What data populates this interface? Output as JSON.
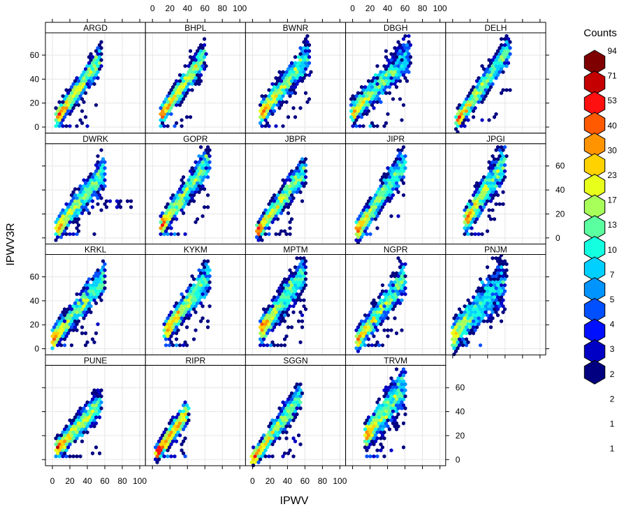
{
  "chart_data": {
    "type": "hexbin",
    "layout": "lattice 5x4 panels",
    "xlabel": "IPWV",
    "ylabel": "IPWV3R",
    "xlim": [
      -8,
      106
    ],
    "ylim": [
      -5,
      78
    ],
    "x_ticks": [
      0,
      20,
      40,
      60,
      80,
      100
    ],
    "y_ticks": [
      0,
      20,
      40,
      60
    ],
    "grid": true,
    "legend": {
      "title": "Counts",
      "position": "right",
      "labels": [
        "94",
        "71",
        "53",
        "40",
        "30",
        "23",
        "17",
        "13",
        "10",
        "7",
        "5",
        "4",
        "3",
        "2",
        "2",
        "1",
        "1"
      ],
      "colors": [
        "#7f0000",
        "#c40000",
        "#ff1010",
        "#ff5a00",
        "#ff9400",
        "#ffd200",
        "#e8ff1c",
        "#a8ff5a",
        "#5cffa0",
        "#14ffe0",
        "#00d0ff",
        "#0094ff",
        "#0050ff",
        "#0010ff",
        "#0000c4",
        "#000080"
      ],
      "thresholds": [
        1,
        1.5,
        2,
        2.5,
        3.5,
        4.5,
        6,
        8.5,
        11.5,
        15,
        20,
        26,
        35,
        46,
        62,
        82
      ]
    },
    "panels": [
      {
        "name": "ARGD",
        "x": [
          5,
          55
        ],
        "a": 2,
        "b": 1.0,
        "sd": 5
      },
      {
        "name": "BHPL",
        "x": [
          10,
          60
        ],
        "a": 0,
        "b": 1.0,
        "sd": 5
      },
      {
        "name": "BWNR",
        "x": [
          10,
          65
        ],
        "a": 2,
        "b": 0.9,
        "sd": 6
      },
      {
        "name": "DBGH",
        "x": [
          0,
          65
        ],
        "a": 12,
        "b": 0.75,
        "sd": 7
      },
      {
        "name": "DELH",
        "x": [
          5,
          65
        ],
        "a": 0,
        "b": 1.0,
        "sd": 5
      },
      {
        "name": "DWRK",
        "x": [
          5,
          60
        ],
        "a": 2,
        "b": 0.9,
        "sd": 6
      },
      {
        "name": "GOPR",
        "x": [
          10,
          65
        ],
        "a": 0,
        "b": 1.0,
        "sd": 6
      },
      {
        "name": "JBPR",
        "x": [
          5,
          60
        ],
        "a": 0,
        "b": 0.95,
        "sd": 5
      },
      {
        "name": "JIPR",
        "x": [
          5,
          60
        ],
        "a": 0,
        "b": 1.05,
        "sd": 6
      },
      {
        "name": "JPGI",
        "x": [
          15,
          60
        ],
        "a": -2,
        "b": 1.1,
        "sd": 7
      },
      {
        "name": "KRKL",
        "x": [
          0,
          60
        ],
        "a": 8,
        "b": 0.85,
        "sd": 6
      },
      {
        "name": "KYKM",
        "x": [
          15,
          65
        ],
        "a": 0,
        "b": 0.95,
        "sd": 6
      },
      {
        "name": "MPTM",
        "x": [
          10,
          60
        ],
        "a": 5,
        "b": 1.0,
        "sd": 7
      },
      {
        "name": "NGPR",
        "x": [
          5,
          60
        ],
        "a": 2,
        "b": 0.95,
        "sd": 6
      },
      {
        "name": "PNJM",
        "x": [
          0,
          60
        ],
        "a": 10,
        "b": 0.8,
        "sd": 9
      },
      {
        "name": "PUNE",
        "x": [
          5,
          55
        ],
        "a": 5,
        "b": 0.75,
        "sd": 5
      },
      {
        "name": "RIPR",
        "x": [
          5,
          40
        ],
        "a": 0,
        "b": 1.0,
        "sd": 4
      },
      {
        "name": "SGGN",
        "x": [
          0,
          55
        ],
        "a": 0,
        "b": 0.95,
        "sd": 5
      },
      {
        "name": "TRVM",
        "x": [
          15,
          60
        ],
        "a": 5,
        "b": 0.95,
        "sd": 8
      }
    ]
  }
}
